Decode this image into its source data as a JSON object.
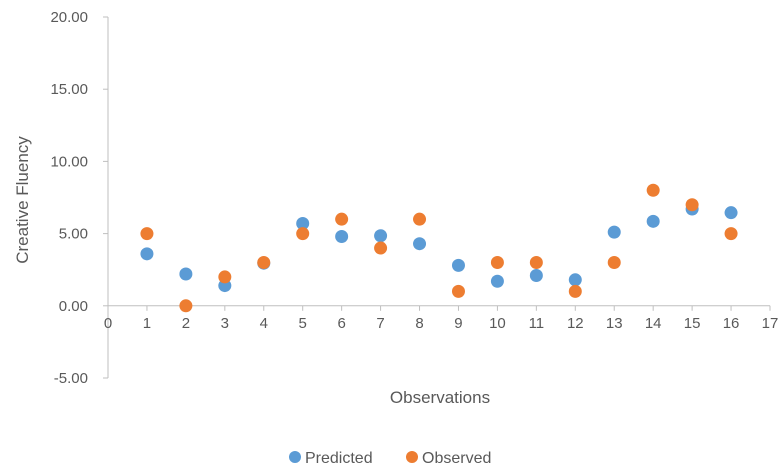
{
  "chart_data": {
    "type": "scatter",
    "xlabel": "Observations",
    "ylabel": "Creative Fluency",
    "xlim": [
      0,
      17
    ],
    "ylim": [
      -5,
      20
    ],
    "x_ticks": [
      "0",
      "1",
      "2",
      "3",
      "4",
      "5",
      "6",
      "7",
      "8",
      "9",
      "10",
      "11",
      "12",
      "13",
      "14",
      "15",
      "16",
      "17"
    ],
    "y_ticks": [
      "20.00",
      "15.00",
      "10.00",
      "5.00",
      "0.00",
      "-5.00"
    ],
    "grid": false,
    "legend_position": "bottom",
    "series": [
      {
        "name": "Predicted",
        "color": "#5B9BD5",
        "x": [
          1,
          2,
          3,
          4,
          5,
          6,
          7,
          8,
          9,
          10,
          11,
          12,
          13,
          14,
          15,
          16
        ],
        "y": [
          3.6,
          2.2,
          1.4,
          2.95,
          5.7,
          4.8,
          4.85,
          4.3,
          2.8,
          1.7,
          2.1,
          1.8,
          5.1,
          5.85,
          6.7,
          6.45
        ]
      },
      {
        "name": "Observed",
        "color": "#ED7D31",
        "x": [
          1,
          2,
          3,
          4,
          5,
          6,
          7,
          8,
          9,
          10,
          11,
          12,
          13,
          14,
          15,
          16
        ],
        "y": [
          5,
          0,
          2,
          3,
          5,
          6,
          4,
          6,
          1,
          3,
          3,
          1,
          3,
          8,
          7,
          5
        ]
      }
    ]
  }
}
